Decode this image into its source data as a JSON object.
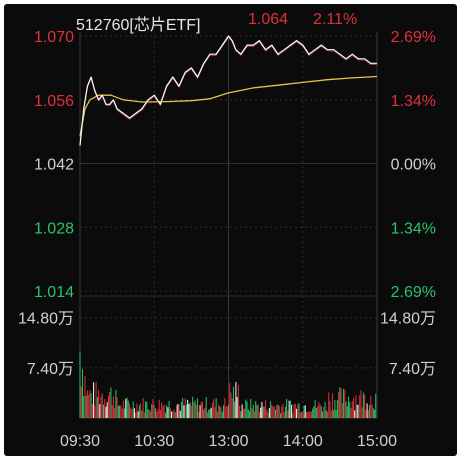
{
  "header": {
    "symbol": "512760[芯片ETF]",
    "price": "1.064",
    "change_pct": "2.11%"
  },
  "colors": {
    "up": "#e0303a",
    "down": "#27c46a",
    "neutral": "#d0d0d0",
    "price_line": "#ffffff",
    "avg_line": "#e8c24a",
    "grid": "#2e2e2e",
    "background": "#0b0b0b"
  },
  "chart_data": {
    "type": "line",
    "price_axis": {
      "labels": [
        "1.070",
        "1.056",
        "1.042",
        "1.028",
        "1.014"
      ],
      "values": [
        1.07,
        1.056,
        1.042,
        1.028,
        1.014
      ],
      "ylim": [
        1.014,
        1.07
      ],
      "reference": 1.042
    },
    "pct_axis": {
      "labels": [
        "2.69%",
        "1.34%",
        "0.00%",
        "1.34%",
        "2.69%"
      ],
      "colors": [
        "up",
        "up",
        "neutral",
        "down",
        "down"
      ]
    },
    "volume_axis": {
      "labels": [
        "14.80万",
        "7.40万"
      ],
      "values": [
        148000,
        74000
      ],
      "ylim": [
        0,
        180000
      ]
    },
    "time_labels": [
      "09:30",
      "10:30",
      "13:00",
      "14:00",
      "15:00"
    ],
    "series": [
      {
        "name": "price",
        "x": [
          0,
          3,
          6,
          9,
          12,
          15,
          18,
          21,
          24,
          27,
          30,
          35,
          40,
          45,
          50,
          55,
          60,
          65,
          70,
          75,
          80,
          85,
          90,
          95,
          100,
          105,
          110,
          115,
          120,
          123,
          126,
          130,
          135,
          140,
          145,
          150,
          155,
          160,
          165,
          170,
          175,
          180,
          185,
          190,
          195,
          200,
          205,
          210,
          215,
          220,
          225,
          230,
          235,
          240
        ],
        "values": [
          1.046,
          1.054,
          1.059,
          1.061,
          1.058,
          1.056,
          1.057,
          1.055,
          1.055,
          1.056,
          1.054,
          1.053,
          1.052,
          1.053,
          1.054,
          1.056,
          1.057,
          1.055,
          1.059,
          1.061,
          1.059,
          1.062,
          1.063,
          1.061,
          1.064,
          1.066,
          1.066,
          1.068,
          1.07,
          1.069,
          1.067,
          1.066,
          1.068,
          1.068,
          1.069,
          1.067,
          1.068,
          1.066,
          1.067,
          1.068,
          1.069,
          1.068,
          1.066,
          1.067,
          1.068,
          1.067,
          1.067,
          1.066,
          1.065,
          1.066,
          1.065,
          1.065,
          1.064,
          1.064
        ]
      },
      {
        "name": "average",
        "x": [
          0,
          4,
          8,
          15,
          25,
          35,
          50,
          70,
          90,
          105,
          120,
          140,
          160,
          180,
          200,
          220,
          240
        ],
        "values": [
          1.048,
          1.054,
          1.056,
          1.057,
          1.057,
          1.056,
          1.0555,
          1.0556,
          1.0558,
          1.0562,
          1.0575,
          1.0586,
          1.0592,
          1.0598,
          1.0604,
          1.0608,
          1.0611
        ]
      }
    ],
    "volume": {
      "count": 240,
      "values": [],
      "directions": [],
      "note_peak_early": true
    },
    "grid": true
  }
}
